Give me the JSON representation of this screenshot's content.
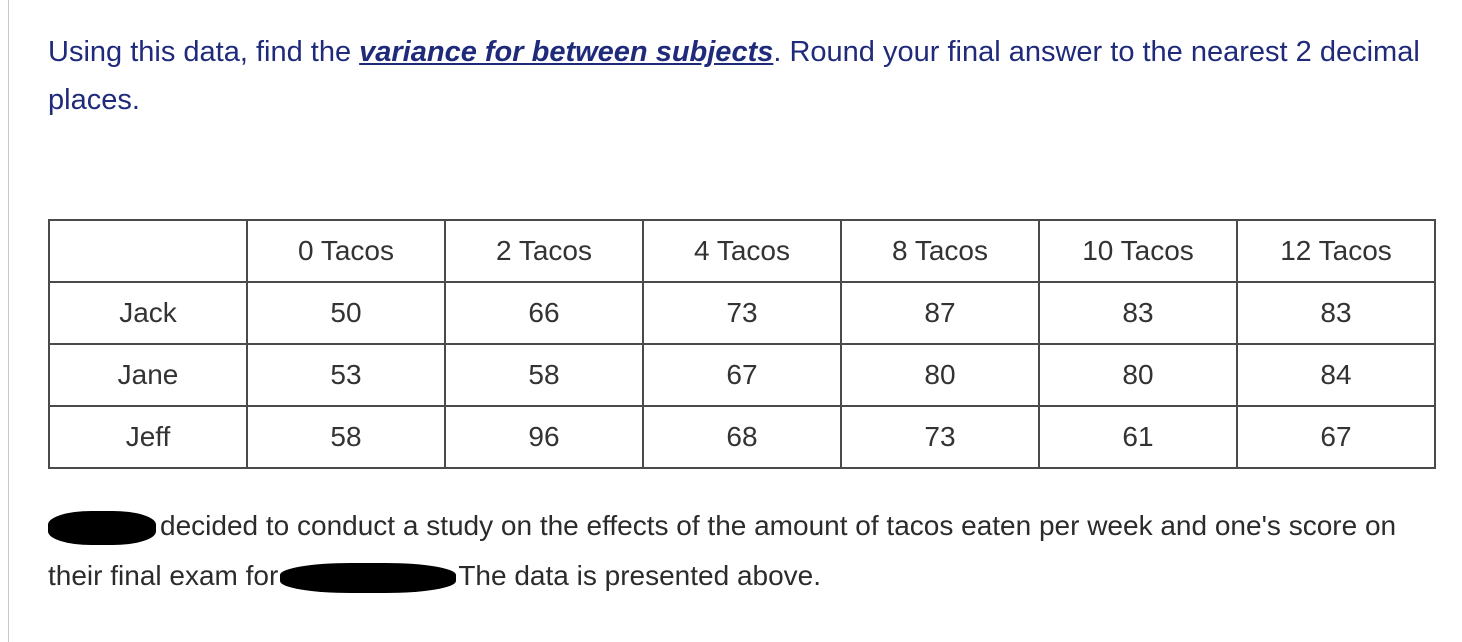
{
  "question": {
    "prefix": "Using this data, find the ",
    "emphasis": "variance for between subjects",
    "suffix": ".  Round your final answer to the nearest 2 decimal places."
  },
  "table": {
    "headers": [
      "",
      "0 Tacos",
      "2 Tacos",
      "4 Tacos",
      "8 Tacos",
      "10 Tacos",
      "12 Tacos"
    ],
    "rows": [
      [
        "Jack",
        "50",
        "66",
        "73",
        "87",
        "83",
        "83"
      ],
      [
        "Jane",
        "53",
        "58",
        "67",
        "80",
        "80",
        "84"
      ],
      [
        "Jeff",
        "58",
        "96",
        "68",
        "73",
        "61",
        "67"
      ]
    ]
  },
  "story": {
    "part1": "decided to conduct a study on the effects of the amount of tacos eaten per week and one's score on their final exam for",
    "part2": "The data is presented above."
  }
}
